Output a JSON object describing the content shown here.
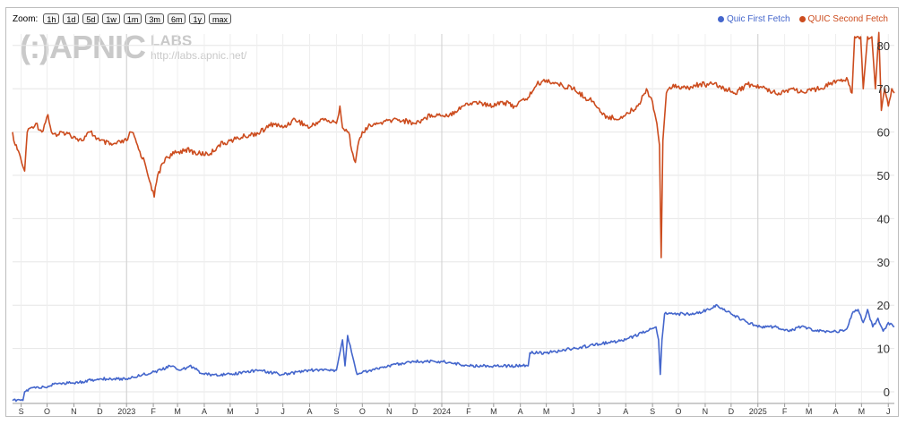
{
  "toolbar": {
    "zoom_label": "Zoom:",
    "buttons": [
      "1h",
      "1d",
      "5d",
      "1w",
      "1m",
      "3m",
      "6m",
      "1y",
      "max"
    ]
  },
  "logo": {
    "main": "(:)APNIC",
    "labs": "LABS",
    "url": "http://labs.apnic.net/"
  },
  "legend": [
    {
      "name": "Quic First Fetch",
      "color": "#4466cc"
    },
    {
      "name": "QUIC Second Fetch",
      "color": "#cc4c1e"
    }
  ],
  "chart_data": {
    "type": "line",
    "x_start": "2022-08-22",
    "x_end": "2025-06-08",
    "ylim": [
      0,
      80
    ],
    "yticks": [
      0,
      10,
      20,
      30,
      40,
      50,
      60,
      70,
      80
    ],
    "xticks": [
      {
        "date": "2022-09-01",
        "label": "S"
      },
      {
        "date": "2022-10-01",
        "label": "O"
      },
      {
        "date": "2022-11-01",
        "label": "N"
      },
      {
        "date": "2022-12-01",
        "label": "D"
      },
      {
        "date": "2023-01-01",
        "label": "2023"
      },
      {
        "date": "2023-02-01",
        "label": "F"
      },
      {
        "date": "2023-03-01",
        "label": "M"
      },
      {
        "date": "2023-04-01",
        "label": "A"
      },
      {
        "date": "2023-05-01",
        "label": "M"
      },
      {
        "date": "2023-06-01",
        "label": "J"
      },
      {
        "date": "2023-07-01",
        "label": "J"
      },
      {
        "date": "2023-08-01",
        "label": "A"
      },
      {
        "date": "2023-09-01",
        "label": "S"
      },
      {
        "date": "2023-10-01",
        "label": "O"
      },
      {
        "date": "2023-11-01",
        "label": "N"
      },
      {
        "date": "2023-12-01",
        "label": "D"
      },
      {
        "date": "2024-01-01",
        "label": "2024"
      },
      {
        "date": "2024-02-01",
        "label": "F"
      },
      {
        "date": "2024-03-01",
        "label": "M"
      },
      {
        "date": "2024-04-01",
        "label": "A"
      },
      {
        "date": "2024-05-01",
        "label": "M"
      },
      {
        "date": "2024-06-01",
        "label": "J"
      },
      {
        "date": "2024-07-01",
        "label": "J"
      },
      {
        "date": "2024-08-01",
        "label": "A"
      },
      {
        "date": "2024-09-01",
        "label": "S"
      },
      {
        "date": "2024-10-01",
        "label": "O"
      },
      {
        "date": "2024-11-01",
        "label": "N"
      },
      {
        "date": "2024-12-01",
        "label": "D"
      },
      {
        "date": "2025-01-01",
        "label": "2025"
      },
      {
        "date": "2025-02-01",
        "label": "F"
      },
      {
        "date": "2025-03-01",
        "label": "M"
      },
      {
        "date": "2025-04-01",
        "label": "A"
      },
      {
        "date": "2025-05-01",
        "label": "M"
      },
      {
        "date": "2025-06-01",
        "label": "J"
      }
    ],
    "year_lines": [
      "2023-01-01",
      "2024-01-01",
      "2025-01-01"
    ],
    "series": [
      {
        "name": "QUIC Second Fetch",
        "color": "#cc4c1e",
        "points": [
          [
            "2022-08-22",
            60
          ],
          [
            "2022-08-25",
            57
          ],
          [
            "2022-08-30",
            55
          ],
          [
            "2022-09-03",
            52
          ],
          [
            "2022-09-05",
            51
          ],
          [
            "2022-09-08",
            60
          ],
          [
            "2022-09-12",
            61
          ],
          [
            "2022-09-18",
            62
          ],
          [
            "2022-09-25",
            60
          ],
          [
            "2022-10-02",
            64
          ],
          [
            "2022-10-06",
            60
          ],
          [
            "2022-10-12",
            59
          ],
          [
            "2022-10-20",
            60
          ],
          [
            "2022-11-01",
            59
          ],
          [
            "2022-11-10",
            58
          ],
          [
            "2022-11-20",
            60
          ],
          [
            "2022-12-01",
            58
          ],
          [
            "2022-12-15",
            57
          ],
          [
            "2023-01-01",
            58
          ],
          [
            "2023-01-06",
            60
          ],
          [
            "2023-01-10",
            59
          ],
          [
            "2023-01-15",
            56
          ],
          [
            "2023-01-22",
            53
          ],
          [
            "2023-01-29",
            48
          ],
          [
            "2023-02-02",
            45
          ],
          [
            "2023-02-06",
            50
          ],
          [
            "2023-02-15",
            54
          ],
          [
            "2023-02-25",
            55
          ],
          [
            "2023-03-10",
            56
          ],
          [
            "2023-03-25",
            55
          ],
          [
            "2023-04-08",
            55
          ],
          [
            "2023-04-18",
            57
          ],
          [
            "2023-05-01",
            58
          ],
          [
            "2023-05-18",
            59
          ],
          [
            "2023-06-05",
            60
          ],
          [
            "2023-06-20",
            62
          ],
          [
            "2023-07-01",
            61
          ],
          [
            "2023-07-15",
            63
          ],
          [
            "2023-08-01",
            61
          ],
          [
            "2023-08-15",
            63
          ],
          [
            "2023-09-01",
            62
          ],
          [
            "2023-09-05",
            66
          ],
          [
            "2023-09-08",
            61
          ],
          [
            "2023-09-15",
            60
          ],
          [
            "2023-09-20",
            55
          ],
          [
            "2023-09-23",
            53
          ],
          [
            "2023-09-27",
            58
          ],
          [
            "2023-10-05",
            61
          ],
          [
            "2023-10-20",
            62
          ],
          [
            "2023-11-10",
            63
          ],
          [
            "2023-12-01",
            62
          ],
          [
            "2023-12-20",
            64
          ],
          [
            "2024-01-10",
            64
          ],
          [
            "2024-01-25",
            66
          ],
          [
            "2024-02-10",
            67
          ],
          [
            "2024-02-25",
            66
          ],
          [
            "2024-03-10",
            67
          ],
          [
            "2024-03-25",
            66
          ],
          [
            "2024-04-10",
            68
          ],
          [
            "2024-04-20",
            71
          ],
          [
            "2024-05-01",
            72
          ],
          [
            "2024-05-15",
            71
          ],
          [
            "2024-06-01",
            70
          ],
          [
            "2024-06-15",
            68
          ],
          [
            "2024-06-25",
            67
          ],
          [
            "2024-07-05",
            64
          ],
          [
            "2024-07-20",
            63
          ],
          [
            "2024-08-01",
            64
          ],
          [
            "2024-08-15",
            66
          ],
          [
            "2024-08-25",
            70
          ],
          [
            "2024-09-01",
            67
          ],
          [
            "2024-09-06",
            62
          ],
          [
            "2024-09-09",
            57
          ],
          [
            "2024-09-11",
            31
          ],
          [
            "2024-09-13",
            58
          ],
          [
            "2024-09-17",
            69
          ],
          [
            "2024-09-25",
            71
          ],
          [
            "2024-10-10",
            70
          ],
          [
            "2024-10-25",
            71
          ],
          [
            "2024-11-10",
            71
          ],
          [
            "2024-11-25",
            70
          ],
          [
            "2024-12-05",
            69
          ],
          [
            "2024-12-20",
            71
          ],
          [
            "2025-01-10",
            70
          ],
          [
            "2025-01-25",
            69
          ],
          [
            "2025-02-10",
            70
          ],
          [
            "2025-02-25",
            69
          ],
          [
            "2025-03-10",
            70
          ],
          [
            "2025-03-25",
            71
          ],
          [
            "2025-04-05",
            72
          ],
          [
            "2025-04-15",
            72
          ],
          [
            "2025-04-20",
            69
          ],
          [
            "2025-04-23",
            82
          ],
          [
            "2025-04-30",
            82
          ],
          [
            "2025-05-03",
            70
          ],
          [
            "2025-05-08",
            82
          ],
          [
            "2025-05-13",
            82
          ],
          [
            "2025-05-17",
            70
          ],
          [
            "2025-05-21",
            83
          ],
          [
            "2025-05-24",
            65
          ],
          [
            "2025-05-28",
            70
          ],
          [
            "2025-06-01",
            66
          ],
          [
            "2025-06-05",
            70
          ],
          [
            "2025-06-08",
            69
          ]
        ]
      },
      {
        "name": "Quic First Fetch",
        "color": "#4466cc",
        "points": [
          [
            "2022-08-22",
            -2
          ],
          [
            "2022-09-03",
            -2
          ],
          [
            "2022-09-05",
            0
          ],
          [
            "2022-09-15",
            1
          ],
          [
            "2022-10-01",
            1
          ],
          [
            "2022-10-10",
            2
          ],
          [
            "2022-11-01",
            2
          ],
          [
            "2022-12-01",
            3
          ],
          [
            "2023-01-01",
            3
          ],
          [
            "2023-01-20",
            4
          ],
          [
            "2023-02-10",
            5
          ],
          [
            "2023-02-20",
            6
          ],
          [
            "2023-03-05",
            5
          ],
          [
            "2023-03-15",
            6
          ],
          [
            "2023-04-01",
            4
          ],
          [
            "2023-05-01",
            4
          ],
          [
            "2023-06-01",
            5
          ],
          [
            "2023-07-01",
            4
          ],
          [
            "2023-08-01",
            5
          ],
          [
            "2023-09-01",
            5
          ],
          [
            "2023-09-08",
            12
          ],
          [
            "2023-09-11",
            6
          ],
          [
            "2023-09-14",
            13
          ],
          [
            "2023-09-20",
            8
          ],
          [
            "2023-09-25",
            4
          ],
          [
            "2023-10-10",
            5
          ],
          [
            "2023-11-01",
            6
          ],
          [
            "2023-12-01",
            7
          ],
          [
            "2024-01-01",
            7
          ],
          [
            "2024-02-01",
            6
          ],
          [
            "2024-03-01",
            6
          ],
          [
            "2024-04-10",
            6
          ],
          [
            "2024-04-12",
            9
          ],
          [
            "2024-05-01",
            9
          ],
          [
            "2024-06-01",
            10
          ],
          [
            "2024-07-01",
            11
          ],
          [
            "2024-08-01",
            12
          ],
          [
            "2024-08-25",
            14
          ],
          [
            "2024-09-05",
            15
          ],
          [
            "2024-09-08",
            12
          ],
          [
            "2024-09-10",
            4
          ],
          [
            "2024-09-12",
            12
          ],
          [
            "2024-09-15",
            18
          ],
          [
            "2024-10-01",
            18
          ],
          [
            "2024-10-20",
            18
          ],
          [
            "2024-11-05",
            19
          ],
          [
            "2024-11-15",
            20
          ],
          [
            "2024-12-01",
            18
          ],
          [
            "2024-12-20",
            16
          ],
          [
            "2025-01-05",
            15
          ],
          [
            "2025-01-20",
            15
          ],
          [
            "2025-02-05",
            14
          ],
          [
            "2025-02-20",
            15
          ],
          [
            "2025-03-10",
            14
          ],
          [
            "2025-04-01",
            14
          ],
          [
            "2025-04-10",
            14
          ],
          [
            "2025-04-15",
            15
          ],
          [
            "2025-04-20",
            18
          ],
          [
            "2025-04-27",
            19
          ],
          [
            "2025-05-03",
            16
          ],
          [
            "2025-05-08",
            19
          ],
          [
            "2025-05-14",
            15
          ],
          [
            "2025-05-20",
            17
          ],
          [
            "2025-05-26",
            14
          ],
          [
            "2025-06-01",
            16
          ],
          [
            "2025-06-08",
            15
          ]
        ]
      }
    ]
  }
}
